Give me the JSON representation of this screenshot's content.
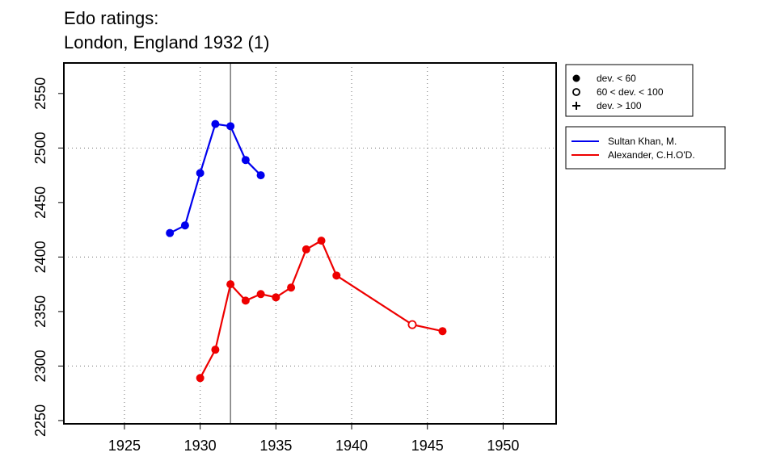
{
  "title_line1": "Edo ratings:",
  "title_line2": "London, England 1932 (1)",
  "chart_data": {
    "type": "line",
    "xlim": [
      1921,
      1953.5
    ],
    "ylim": [
      2247,
      2578
    ],
    "x_ticks": [
      1925,
      1930,
      1935,
      1940,
      1945,
      1950
    ],
    "y_ticks": [
      2250,
      2300,
      2350,
      2400,
      2450,
      2500,
      2550
    ],
    "x_gridlines": [
      1925,
      1930,
      1935,
      1940,
      1945,
      1950
    ],
    "y_gridlines": [
      2300,
      2400,
      2500
    ],
    "grid": "dotted",
    "event_line_x": 1932,
    "series": [
      {
        "name": "Sultan Khan, M.",
        "color": "#0000ee",
        "points": [
          {
            "x": 1928,
            "y": 2422,
            "dev": "lt60"
          },
          {
            "x": 1929,
            "y": 2429,
            "dev": "lt60"
          },
          {
            "x": 1930,
            "y": 2477,
            "dev": "lt60"
          },
          {
            "x": 1931,
            "y": 2522,
            "dev": "lt60"
          },
          {
            "x": 1932,
            "y": 2520,
            "dev": "lt60"
          },
          {
            "x": 1933,
            "y": 2489,
            "dev": "lt60"
          },
          {
            "x": 1934,
            "y": 2475,
            "dev": "lt60"
          }
        ]
      },
      {
        "name": "Alexander, C.H.O'D.",
        "color": "#ee0000",
        "points": [
          {
            "x": 1930,
            "y": 2289,
            "dev": "lt60"
          },
          {
            "x": 1931,
            "y": 2315,
            "dev": "lt60"
          },
          {
            "x": 1932,
            "y": 2375,
            "dev": "lt60"
          },
          {
            "x": 1933,
            "y": 2360,
            "dev": "lt60"
          },
          {
            "x": 1934,
            "y": 2366,
            "dev": "lt60"
          },
          {
            "x": 1935,
            "y": 2363,
            "dev": "lt60"
          },
          {
            "x": 1936,
            "y": 2372,
            "dev": "lt60"
          },
          {
            "x": 1937,
            "y": 2407,
            "dev": "lt60"
          },
          {
            "x": 1938,
            "y": 2415,
            "dev": "lt60"
          },
          {
            "x": 1939,
            "y": 2383,
            "dev": "lt60"
          },
          {
            "x": 1944,
            "y": 2338,
            "dev": "60to100"
          },
          {
            "x": 1946,
            "y": 2332,
            "dev": "lt60"
          }
        ]
      }
    ],
    "symbol_legend": [
      {
        "symbol": "filled-circle",
        "label": "dev. < 60"
      },
      {
        "symbol": "open-circle",
        "label": "60 < dev. < 100"
      },
      {
        "symbol": "plus",
        "label": "dev. > 100"
      }
    ]
  }
}
